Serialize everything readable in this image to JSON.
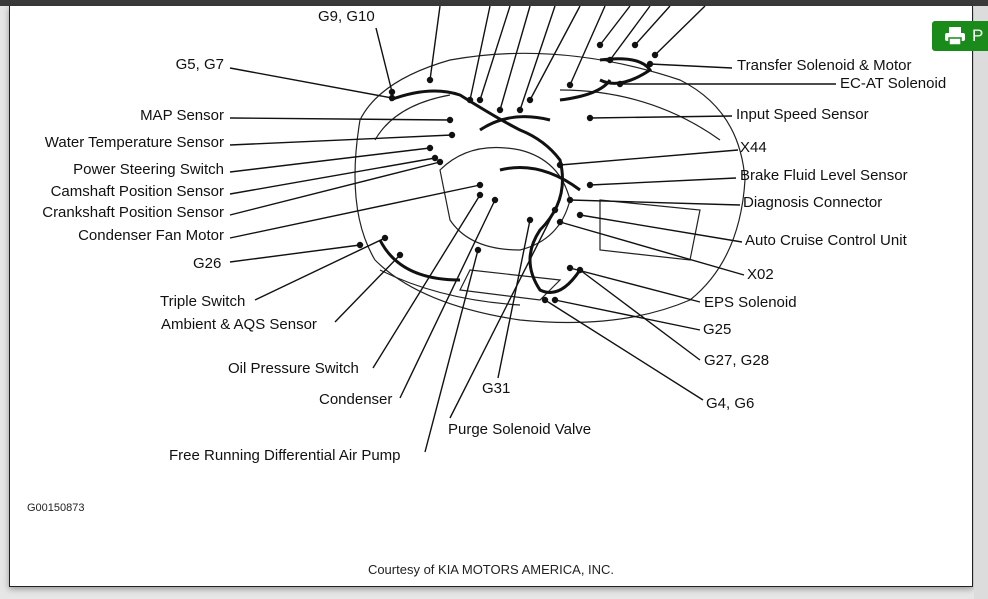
{
  "figure_id": "G00150873",
  "courtesy": "Courtesy of KIA MOTORS AMERICA, INC.",
  "print_button": {
    "label": "P",
    "icon": "printer-icon",
    "color": "#1a8a1a"
  },
  "labels": {
    "g9_g10": "G9, G10",
    "g5_g7": "G5, G7",
    "map_sensor": "MAP Sensor",
    "water_temp": "Water Temperature Sensor",
    "power_steering": "Power Steering Switch",
    "camshaft": "Camshaft Position Sensor",
    "crankshaft": "Crankshaft Position Sensor",
    "condenser_fan": "Condenser Fan Motor",
    "g26": "G26",
    "triple_switch": "Triple Switch",
    "ambient_aqs": "Ambient & AQS Sensor",
    "oil_pressure": "Oil Pressure Switch",
    "condenser": "Condenser",
    "free_running": "Free Running Differential Air Pump",
    "g31": "G31",
    "purge_solenoid": "Purge Solenoid Valve",
    "transfer_solenoid": "Transfer Solenoid & Motor",
    "ecat_solenoid": "EC-AT Solenoid",
    "input_speed": "Input Speed Sensor",
    "x44": "X44",
    "brake_fluid": "Brake Fluid Level Sensor",
    "diagnosis": "Diagnosis Connector",
    "auto_cruise": "Auto Cruise Control Unit",
    "x02": "X02",
    "eps_solenoid": "EPS Solenoid",
    "g25": "G25",
    "g27_g28": "G27, G28",
    "g4_g6": "G4, G6"
  }
}
